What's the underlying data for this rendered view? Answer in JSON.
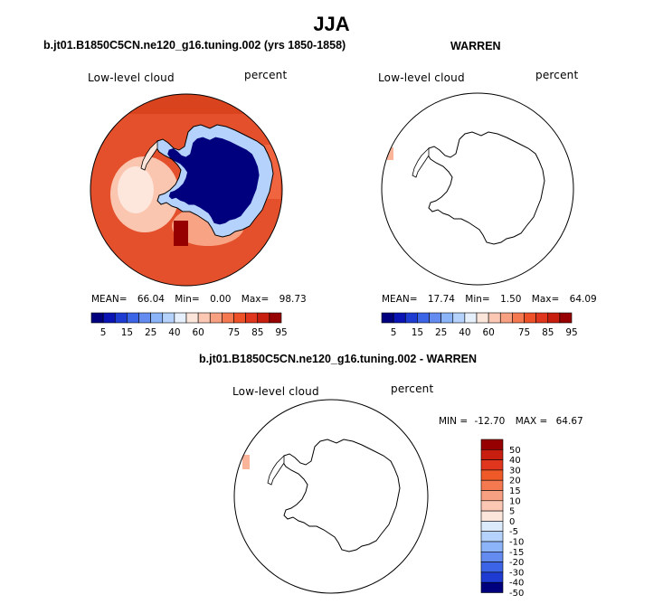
{
  "page_title": "JJA",
  "chart_data": [
    {
      "type": "heatmap",
      "projection": "south-polar-stereographic",
      "panel_title": "b.jt01.B1850C5CN.ne120_g16.tuning.002 (yrs 1850-1858)",
      "variable_label": "Low-level cloud",
      "units_label": "percent",
      "stats": {
        "mean_label": "MEAN=",
        "mean": "66.04",
        "min_label": "Min=",
        "min": "0.00",
        "max_label": "Max=",
        "max": "98.73"
      },
      "colorbar_levels": [
        5,
        10,
        15,
        20,
        25,
        30,
        40,
        50,
        60,
        65,
        70,
        75,
        80,
        85,
        90,
        95
      ],
      "colorbar_tick_labels": [
        "5",
        "15",
        "25",
        "40",
        "60",
        "75",
        "85",
        "95"
      ],
      "value_range": [
        0.0,
        98.73
      ]
    },
    {
      "type": "heatmap",
      "projection": "south-polar-stereographic",
      "panel_title": "WARREN",
      "variable_label": "Low-level cloud",
      "units_label": "percent",
      "stats": {
        "mean_label": "MEAN=",
        "mean": "17.74",
        "min_label": "Min=",
        "min": "1.50",
        "max_label": "Max=",
        "max": "64.09"
      },
      "colorbar_levels": [
        5,
        10,
        15,
        20,
        25,
        30,
        40,
        50,
        60,
        65,
        70,
        75,
        80,
        85,
        90,
        95
      ],
      "colorbar_tick_labels": [
        "5",
        "15",
        "25",
        "40",
        "60",
        "75",
        "85",
        "95"
      ],
      "value_range": [
        1.5,
        64.09
      ]
    },
    {
      "type": "heatmap",
      "projection": "south-polar-stereographic",
      "panel_title": "b.jt01.B1850C5CN.ne120_g16.tuning.002 - WARREN",
      "variable_label": "Low-level cloud",
      "units_label": "percent",
      "stats": {
        "min_label": "MIN =",
        "min": "-12.70",
        "max_label": "MAX =",
        "max": "64.67"
      },
      "colorbar_levels": [
        -50,
        -40,
        -30,
        -20,
        -15,
        -10,
        -5,
        0,
        5,
        10,
        15,
        20,
        30,
        40,
        50
      ],
      "colorbar_tick_labels": [
        "50",
        "40",
        "30",
        "20",
        "15",
        "10",
        "5",
        "0",
        "-5",
        "-10",
        "-15",
        "-20",
        "-30",
        "-40",
        "-50"
      ],
      "value_range": [
        -12.7,
        64.67
      ]
    }
  ],
  "colors": {
    "abs_scale": [
      "#00007f",
      "#0a14b4",
      "#1e3cd2",
      "#3c64e6",
      "#648cf0",
      "#8cb4f8",
      "#b4d2fc",
      "#e6f0fc",
      "#fce6dc",
      "#fcc8b4",
      "#f8a082",
      "#f47850",
      "#ee5028",
      "#e0361e",
      "#c81e0f",
      "#960000"
    ],
    "diff_scale": [
      "#960000",
      "#c81e0f",
      "#e0361e",
      "#f05a28",
      "#f47850",
      "#f8a082",
      "#fcc8b4",
      "#fce6dc",
      "#dcebfc",
      "#b4d2fc",
      "#8cb4f8",
      "#648cf0",
      "#3c64e6",
      "#1e3cd2",
      "#00007f"
    ],
    "ocean_cloud": "#e4502c",
    "ocean_cloud_light": "#f0643a",
    "antarctica_interior": "#00007f"
  }
}
